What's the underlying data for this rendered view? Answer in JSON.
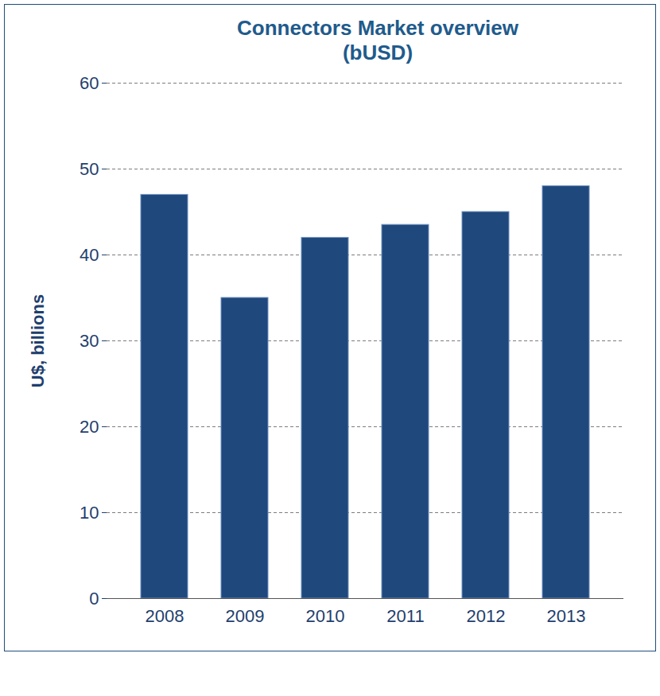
{
  "chart_data": {
    "type": "bar",
    "title": "Connectors Market overview (bUSD)",
    "y_label": "U$, billions",
    "categories": [
      "2008",
      "2009",
      "2010",
      "2011",
      "2012",
      "2013"
    ],
    "values": [
      47,
      35,
      42,
      43.5,
      45,
      48
    ],
    "color": "#1f497d",
    "ylim": [
      0,
      60
    ],
    "yticks": [
      0,
      10,
      20,
      30,
      40,
      50,
      60
    ],
    "grid": true
  }
}
